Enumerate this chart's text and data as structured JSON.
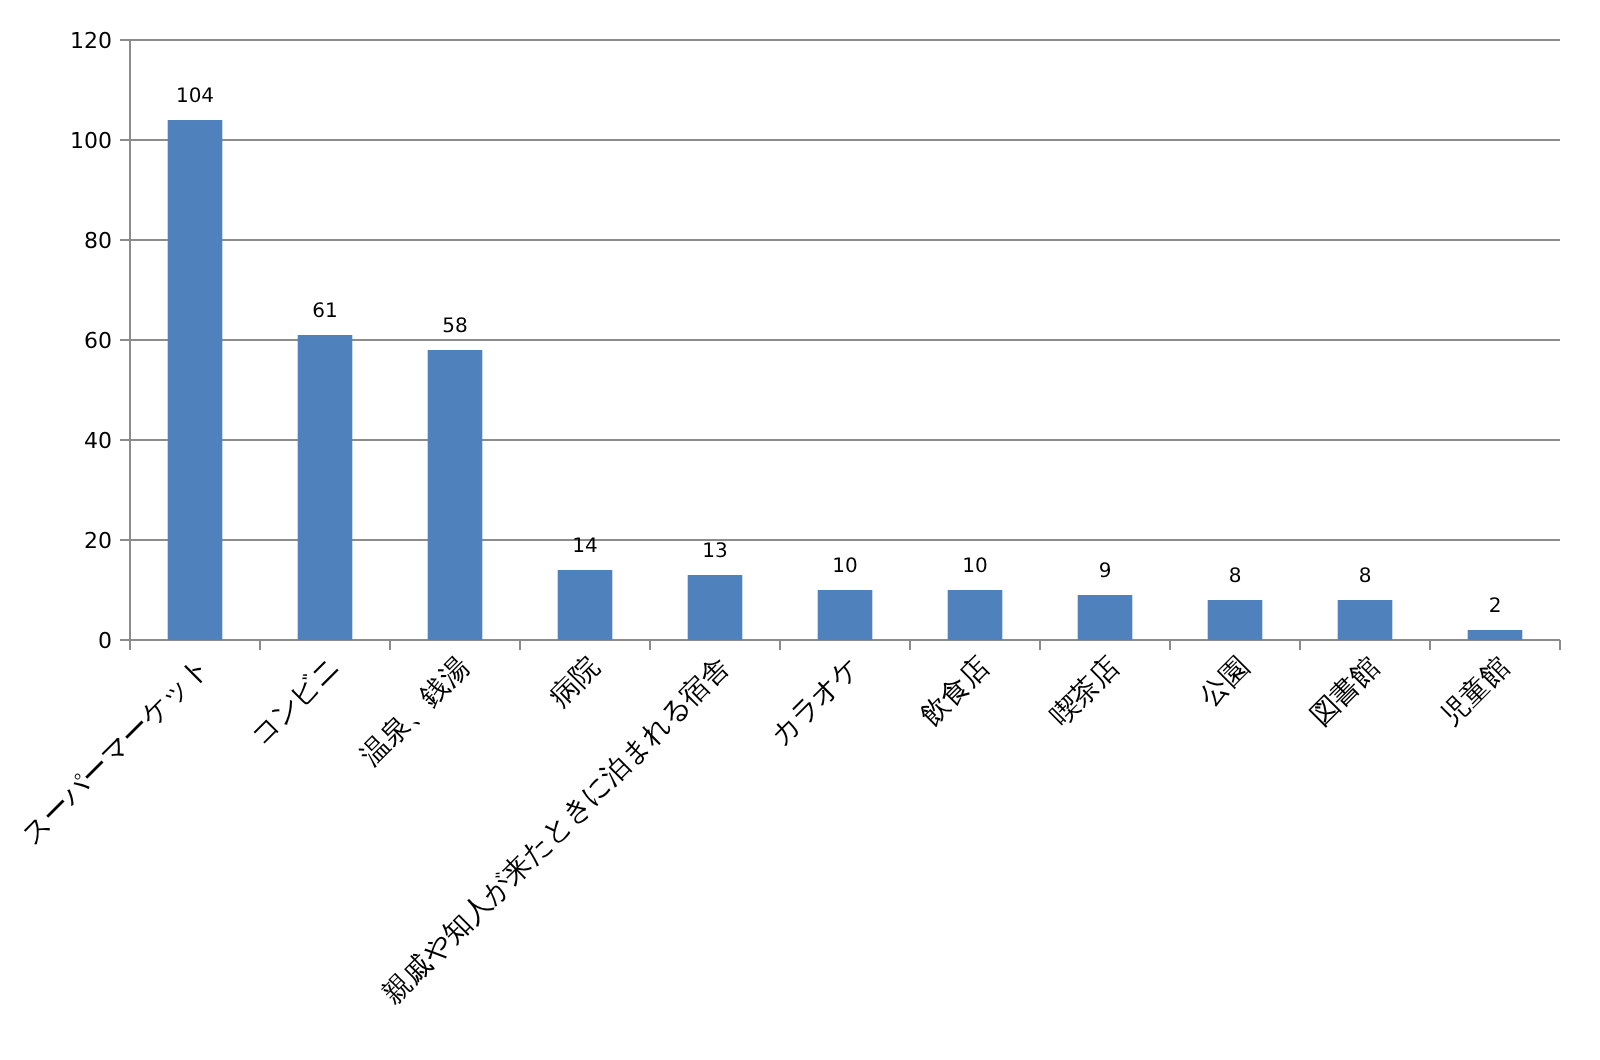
{
  "chart_data": {
    "type": "bar",
    "categories": [
      "スーパーマーケット",
      "コンビニ",
      "温泉、銭湯",
      "病院",
      "親戚や知人が来たときに泊まれる宿舎",
      "カラオケ",
      "飲食店",
      "喫茶店",
      "公園",
      "図書館",
      "児童館"
    ],
    "values": [
      104,
      61,
      58,
      14,
      13,
      10,
      10,
      9,
      8,
      8,
      2
    ],
    "color": "#4f81bd",
    "ylim": [
      0,
      120
    ],
    "yticks": [
      0,
      20,
      40,
      60,
      80,
      100,
      120
    ],
    "grid": "y",
    "data_labels": true
  }
}
